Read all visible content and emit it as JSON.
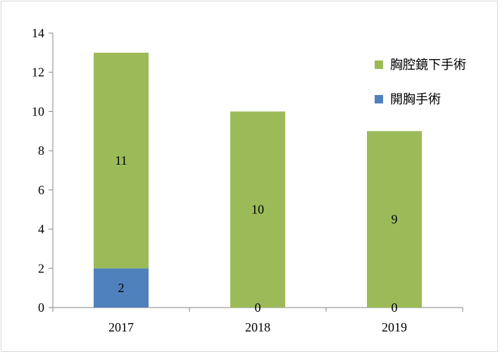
{
  "chart_data": {
    "type": "bar",
    "stacked": true,
    "categories": [
      "2017",
      "2018",
      "2019"
    ],
    "series": [
      {
        "name": "開胸手術",
        "values": [
          2,
          0,
          0
        ],
        "color": "#4f81bd"
      },
      {
        "name": "胸腔鏡下手術",
        "values": [
          11,
          10,
          9
        ],
        "color": "#9bbb59"
      }
    ],
    "data_labels": [
      {
        "series": "開胸手術",
        "labels": [
          "2",
          "0",
          "0"
        ]
      },
      {
        "series": "胸腔鏡下手術",
        "labels": [
          "11",
          "10",
          "9"
        ]
      }
    ],
    "y_ticks": [
      "0",
      "2",
      "4",
      "6",
      "8",
      "10",
      "12",
      "14"
    ],
    "ylim": [
      0,
      14
    ],
    "title": "",
    "xlabel": "",
    "ylabel": "",
    "grid": false,
    "legend": {
      "placement": "right",
      "entries": [
        "胸腔鏡下手術",
        "開胸手術"
      ]
    }
  }
}
